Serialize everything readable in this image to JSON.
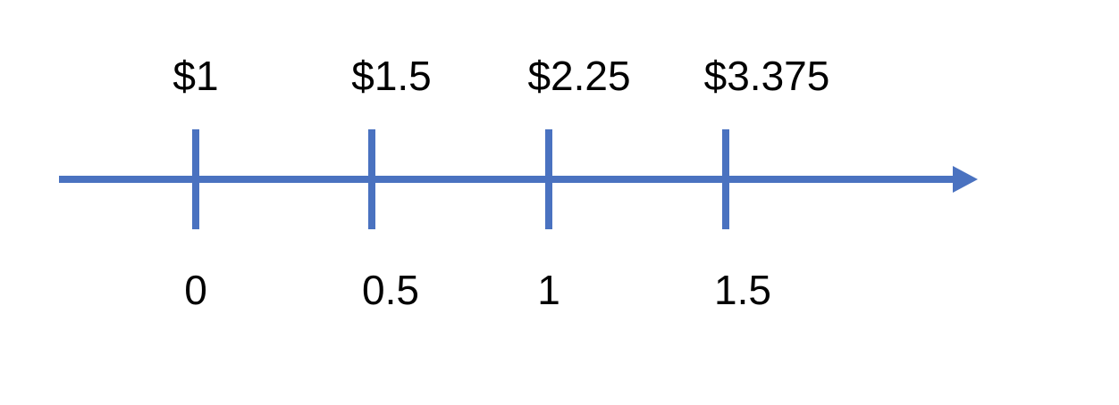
{
  "colors": {
    "axis": "#4a72c0",
    "text": "#000000",
    "background": "#ffffff"
  },
  "timeline": {
    "points": [
      {
        "time": "0",
        "value": "$1"
      },
      {
        "time": "0.5",
        "value": "$1.5"
      },
      {
        "time": "1",
        "value": "$2.25"
      },
      {
        "time": "1.5",
        "value": "$3.375"
      }
    ]
  }
}
